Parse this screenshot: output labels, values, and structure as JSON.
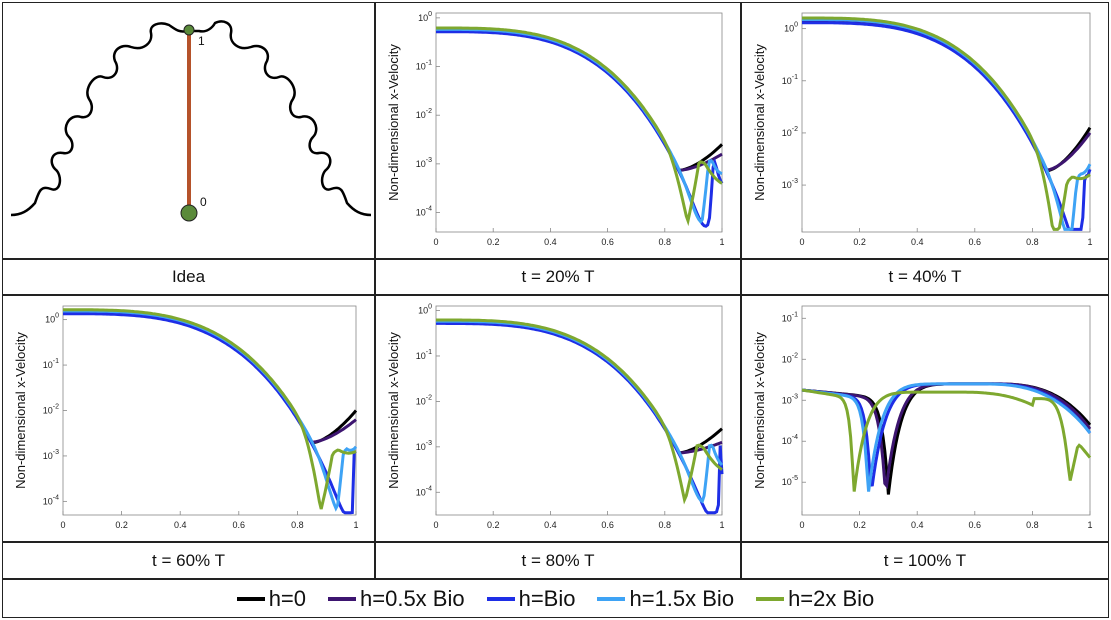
{
  "figure": {
    "idea_caption": "Idea",
    "idea_labels": {
      "top": "1",
      "bottom": "0"
    },
    "ylabel": "Non-dimensional x-Velocity"
  },
  "legend": [
    {
      "label": "h=0",
      "color": "#000000"
    },
    {
      "label": "h=0.5x Bio",
      "color": "#3d1570"
    },
    {
      "label": "h=Bio",
      "color": "#1e2ee6"
    },
    {
      "label": "h=1.5x Bio",
      "color": "#3ea3f5"
    },
    {
      "label": "h=2x Bio",
      "color": "#7ea82f"
    }
  ],
  "chart_data": [
    {
      "type": "line",
      "title": "t = 20% T",
      "xlabel": "",
      "ylabel": "Non-dimensional x-Velocity",
      "yscale": "log",
      "ylim_exp": [
        -4.4,
        0.1
      ],
      "xlim": [
        0,
        1
      ],
      "xticks": [
        "0",
        "0.2",
        "0.4",
        "0.6",
        "0.8",
        "1"
      ],
      "yticks": [
        {
          "exp": 0
        },
        {
          "exp": -1
        },
        {
          "exp": -2
        },
        {
          "exp": -3
        },
        {
          "exp": -4
        }
      ],
      "series": [
        {
          "name": "h=0",
          "start": 0.55,
          "end": -2.6
        },
        {
          "name": "h=0.5x Bio",
          "start": 0.55,
          "end": -2.8
        },
        {
          "name": "h=Bio",
          "start": 0.52,
          "dip": 0.955,
          "end": -3.4
        },
        {
          "name": "h=1.5x Bio",
          "start": 0.58,
          "dip": 0.93,
          "end": -3.2
        },
        {
          "name": "h=2x Bio",
          "start": 0.62,
          "dip": 0.88,
          "end": -3.4
        }
      ]
    },
    {
      "type": "line",
      "title": "t = 40% T",
      "xlabel": "",
      "ylabel": "Non-dimensional x-Velocity",
      "yscale": "log",
      "ylim_exp": [
        -3.9,
        0.3
      ],
      "xlim": [
        0,
        1
      ],
      "xticks": [
        "0",
        "0.2",
        "0.4",
        "0.6",
        "0.8",
        "1"
      ],
      "yticks": [
        {
          "exp": 0
        },
        {
          "exp": -1
        },
        {
          "exp": -2
        },
        {
          "exp": -3
        }
      ],
      "series": [
        {
          "name": "h=0",
          "start": 1.4,
          "end": -1.9
        },
        {
          "name": "h=0.5x Bio",
          "start": 1.45,
          "end": -2.0
        },
        {
          "name": "h=Bio",
          "start": 1.3,
          "dip": 0.97,
          "end": -2.7
        },
        {
          "name": "h=1.5x Bio",
          "start": 1.5,
          "dip": 0.93,
          "end": -2.6
        },
        {
          "name": "h=2x Bio",
          "start": 1.6,
          "dip": 0.88,
          "end": -2.8
        }
      ]
    },
    {
      "type": "line",
      "title": "t = 60% T",
      "xlabel": "",
      "ylabel": "Non-dimensional x-Velocity",
      "yscale": "log",
      "ylim_exp": [
        -4.3,
        0.3
      ],
      "xlim": [
        0,
        1
      ],
      "xticks": [
        "0",
        "0.2",
        "0.4",
        "0.6",
        "0.8",
        "1"
      ],
      "yticks": [
        {
          "exp": 0
        },
        {
          "exp": -1
        },
        {
          "exp": -2
        },
        {
          "exp": -3
        },
        {
          "exp": -4
        }
      ],
      "series": [
        {
          "name": "h=0",
          "start": 1.45,
          "end": -2.0
        },
        {
          "name": "h=0.5x Bio",
          "start": 1.5,
          "end": -2.2
        },
        {
          "name": "h=Bio",
          "start": 1.35,
          "dip": 0.99,
          "end": -2.9
        },
        {
          "name": "h=1.5x Bio",
          "start": 1.55,
          "dip": 0.935,
          "end": -2.8
        },
        {
          "name": "h=2x Bio",
          "start": 1.65,
          "dip": 0.88,
          "end": -2.9
        }
      ]
    },
    {
      "type": "line",
      "title": "t = 80% T",
      "xlabel": "",
      "ylabel": "Non-dimensional x-Velocity",
      "yscale": "log",
      "ylim_exp": [
        -4.5,
        0.1
      ],
      "xlim": [
        0,
        1
      ],
      "xticks": [
        "0",
        "0.2",
        "0.4",
        "0.6",
        "0.8",
        "1"
      ],
      "yticks": [
        {
          "exp": 0
        },
        {
          "exp": -1
        },
        {
          "exp": -2
        },
        {
          "exp": -3
        },
        {
          "exp": -4
        }
      ],
      "series": [
        {
          "name": "h=0",
          "start": 0.55,
          "end": -2.6
        },
        {
          "name": "h=0.5x Bio",
          "start": 0.55,
          "end": -2.9
        },
        {
          "name": "h=Bio",
          "start": 0.52,
          "dip": 0.99,
          "end": -3.6
        },
        {
          "name": "h=1.5x Bio",
          "start": 0.58,
          "dip": 0.935,
          "end": -3.4
        },
        {
          "name": "h=2x Bio",
          "start": 0.62,
          "dip": 0.87,
          "end": -3.5
        }
      ]
    },
    {
      "type": "line",
      "title": "t = 100% T",
      "xlabel": "",
      "ylabel": "Non-dimensional x-Velocity",
      "yscale": "log",
      "ylim_exp": [
        -5.8,
        -0.7
      ],
      "xlim": [
        0,
        1
      ],
      "xticks": [
        "0",
        "0.2",
        "0.4",
        "0.6",
        "0.8",
        "1"
      ],
      "yticks": [
        {
          "exp": -1
        },
        {
          "exp": -2
        },
        {
          "exp": -3
        },
        {
          "exp": -4
        },
        {
          "exp": -5
        }
      ],
      "series": [
        {
          "name": "h=0",
          "dip1": 0.3,
          "peak": 0.65,
          "end": -3.6
        },
        {
          "name": "h=0.5x Bio",
          "dip1": 0.29,
          "peak": 0.65,
          "end": -3.7
        },
        {
          "name": "h=Bio",
          "dip1": 0.24,
          "peak": 0.62,
          "end": -3.8
        },
        {
          "name": "h=1.5x Bio",
          "dip1": 0.23,
          "peak": 0.6,
          "end": -3.8
        },
        {
          "name": "h=2x Bio",
          "dip1": 0.18,
          "peak": 0.52,
          "dip2": 0.93,
          "end": -4.4
        }
      ]
    }
  ]
}
